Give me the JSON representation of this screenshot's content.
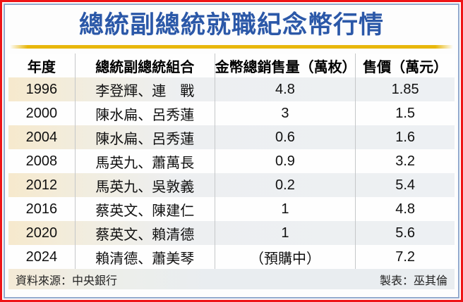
{
  "title": "總統副總統就職紀念幣行情",
  "colors": {
    "title_blue": "#2b58a8",
    "gold_rule": "#e8b70c",
    "outer_border_red": "#ee1417",
    "inner_border_blue": "#92a9cd",
    "highlight_row_left": "#f6e9cd",
    "highlight_row_right": "#edf0f3",
    "footer_bg": "#e9edf0"
  },
  "table": {
    "columns": [
      "年度",
      "總統副總統組合",
      "金幣總銷售量（萬枚）",
      "售價（萬元）"
    ],
    "rows": [
      {
        "year": "1996",
        "pair": "李登輝、連　戰",
        "sales": "4.8",
        "price": "1.85"
      },
      {
        "year": "2000",
        "pair": "陳水扁、呂秀蓮",
        "sales": "3",
        "price": "1.5"
      },
      {
        "year": "2004",
        "pair": "陳水扁、呂秀蓮",
        "sales": "0.6",
        "price": "1.6"
      },
      {
        "year": "2008",
        "pair": "馬英九、蕭萬長",
        "sales": "0.9",
        "price": "3.2"
      },
      {
        "year": "2012",
        "pair": "馬英九、吳敦義",
        "sales": "0.2",
        "price": "5.4"
      },
      {
        "year": "2016",
        "pair": "蔡英文、陳建仁",
        "sales": "1",
        "price": "4.8"
      },
      {
        "year": "2020",
        "pair": "蔡英文、賴清德",
        "sales": "1",
        "price": "5.6"
      },
      {
        "year": "2024",
        "pair": "賴清德、蕭美琴",
        "sales": "（預購中）",
        "price": "7.2"
      }
    ]
  },
  "footer": {
    "source": "資料來源：中央銀行",
    "credit": "製表：巫其倫"
  },
  "chart_data": {
    "type": "table",
    "title": "總統副總統就職紀念幣行情",
    "columns": [
      "年度",
      "總統副總統組合",
      "金幣總銷售量（萬枚）",
      "售價（萬元）"
    ],
    "rows": [
      [
        "1996",
        "李登輝、連　戰",
        "4.8",
        "1.85"
      ],
      [
        "2000",
        "陳水扁、呂秀蓮",
        "3",
        "1.5"
      ],
      [
        "2004",
        "陳水扁、呂秀蓮",
        "0.6",
        "1.6"
      ],
      [
        "2008",
        "馬英九、蕭萬長",
        "0.9",
        "3.2"
      ],
      [
        "2012",
        "馬英九、吳敦義",
        "0.2",
        "5.4"
      ],
      [
        "2016",
        "蔡英文、陳建仁",
        "1",
        "4.8"
      ],
      [
        "2020",
        "蔡英文、賴清德",
        "1",
        "5.6"
      ],
      [
        "2024",
        "賴清德、蕭美琴",
        "（預購中）",
        "7.2"
      ]
    ],
    "source": "資料來源：中央銀行",
    "credit": "製表：巫其倫"
  }
}
